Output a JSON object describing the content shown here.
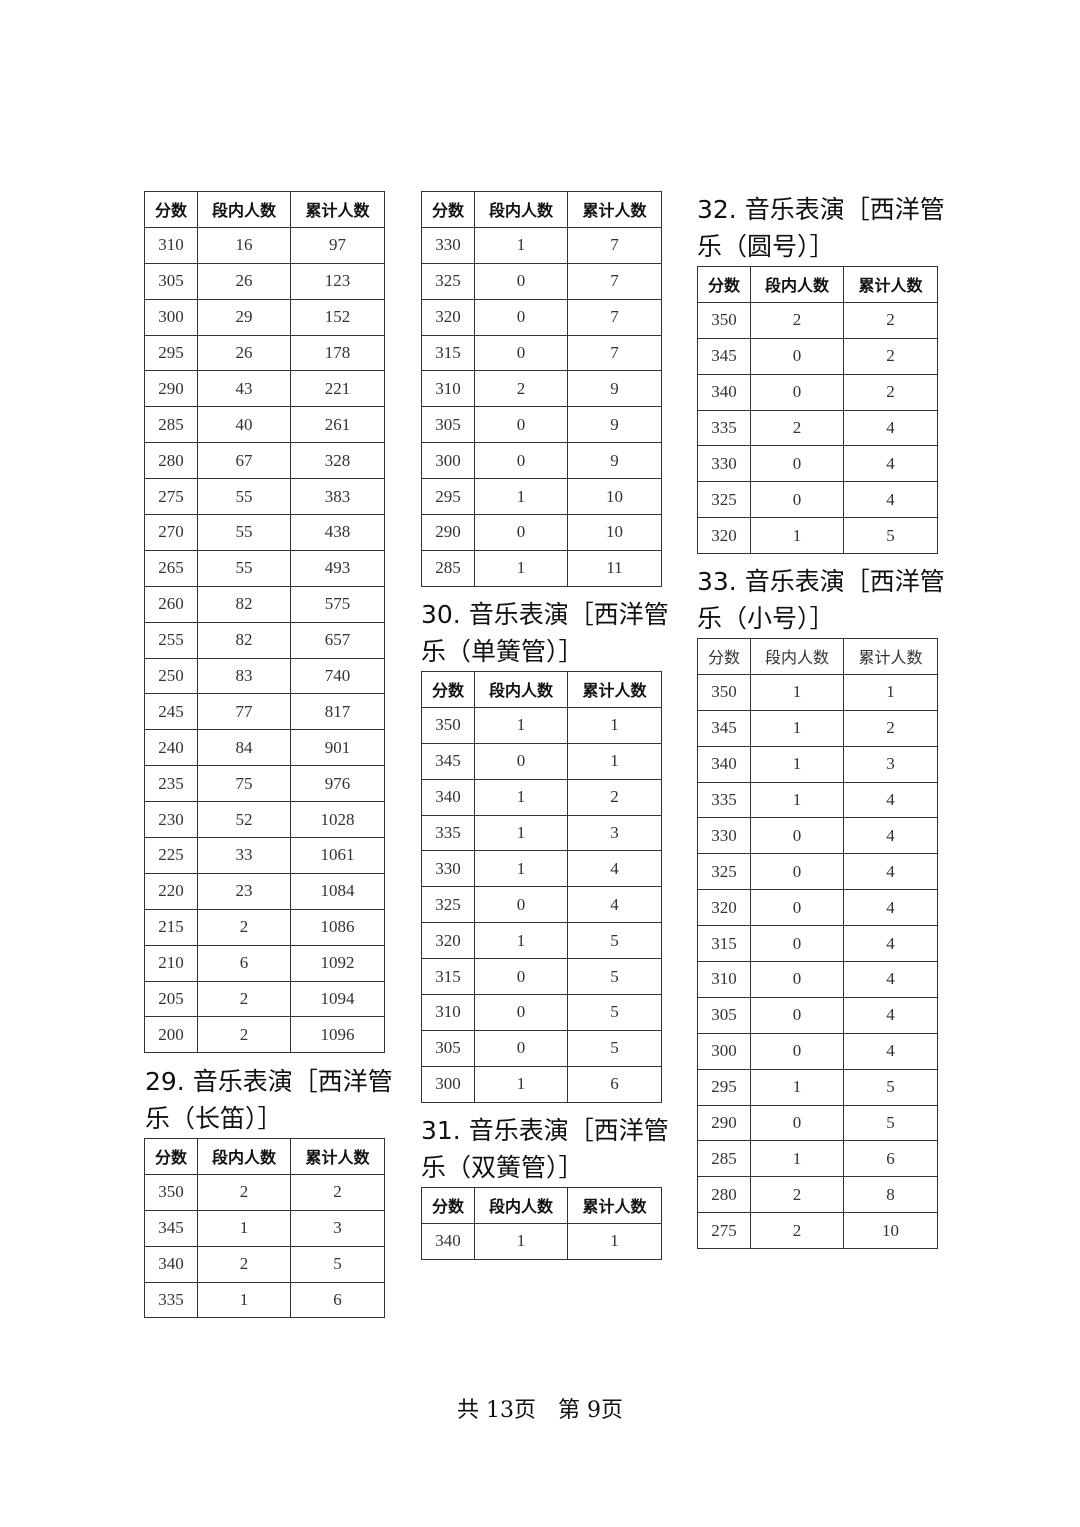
{
  "headers": [
    "分数",
    "段内人数",
    "累计人数"
  ],
  "tables": [
    {
      "id": "t28-cont",
      "title": "",
      "rows": [
        [
          "310",
          "16",
          "97"
        ],
        [
          "305",
          "26",
          "123"
        ],
        [
          "300",
          "29",
          "152"
        ],
        [
          "295",
          "26",
          "178"
        ],
        [
          "290",
          "43",
          "221"
        ],
        [
          "285",
          "40",
          "261"
        ],
        [
          "280",
          "67",
          "328"
        ],
        [
          "275",
          "55",
          "383"
        ],
        [
          "270",
          "55",
          "438"
        ],
        [
          "265",
          "55",
          "493"
        ],
        [
          "260",
          "82",
          "575"
        ],
        [
          "255",
          "82",
          "657"
        ],
        [
          "250",
          "83",
          "740"
        ],
        [
          "245",
          "77",
          "817"
        ],
        [
          "240",
          "84",
          "901"
        ],
        [
          "235",
          "75",
          "976"
        ],
        [
          "230",
          "52",
          "1028"
        ],
        [
          "225",
          "33",
          "1061"
        ],
        [
          "220",
          "23",
          "1084"
        ],
        [
          "215",
          "2",
          "1086"
        ],
        [
          "210",
          "6",
          "1092"
        ],
        [
          "205",
          "2",
          "1094"
        ],
        [
          "200",
          "2",
          "1096"
        ]
      ]
    },
    {
      "id": "t29",
      "title": "29. 音乐表演［西洋管乐（长笛）］",
      "rows": [
        [
          "350",
          "2",
          "2"
        ],
        [
          "345",
          "1",
          "3"
        ],
        [
          "340",
          "2",
          "5"
        ],
        [
          "335",
          "1",
          "6"
        ]
      ]
    },
    {
      "id": "t29-cont",
      "title": "",
      "rows": [
        [
          "330",
          "1",
          "7"
        ],
        [
          "325",
          "0",
          "7"
        ],
        [
          "320",
          "0",
          "7"
        ],
        [
          "315",
          "0",
          "7"
        ],
        [
          "310",
          "2",
          "9"
        ],
        [
          "305",
          "0",
          "9"
        ],
        [
          "300",
          "0",
          "9"
        ],
        [
          "295",
          "1",
          "10"
        ],
        [
          "290",
          "0",
          "10"
        ],
        [
          "285",
          "1",
          "11"
        ]
      ]
    },
    {
      "id": "t30",
      "title": "30. 音乐表演［西洋管乐（单簧管）］",
      "rows": [
        [
          "350",
          "1",
          "1"
        ],
        [
          "345",
          "0",
          "1"
        ],
        [
          "340",
          "1",
          "2"
        ],
        [
          "335",
          "1",
          "3"
        ],
        [
          "330",
          "1",
          "4"
        ],
        [
          "325",
          "0",
          "4"
        ],
        [
          "320",
          "1",
          "5"
        ],
        [
          "315",
          "0",
          "5"
        ],
        [
          "310",
          "0",
          "5"
        ],
        [
          "305",
          "0",
          "5"
        ],
        [
          "300",
          "1",
          "6"
        ]
      ]
    },
    {
      "id": "t31",
      "title": "31. 音乐表演［西洋管乐（双簧管）］",
      "rows": [
        [
          "340",
          "1",
          "1"
        ]
      ]
    },
    {
      "id": "t32",
      "title": "32. 音乐表演［西洋管乐（圆号）］",
      "rows": [
        [
          "350",
          "2",
          "2"
        ],
        [
          "345",
          "0",
          "2"
        ],
        [
          "340",
          "0",
          "2"
        ],
        [
          "335",
          "2",
          "4"
        ],
        [
          "330",
          "0",
          "4"
        ],
        [
          "325",
          "0",
          "4"
        ],
        [
          "320",
          "1",
          "5"
        ]
      ]
    },
    {
      "id": "t33",
      "title": "33. 音乐表演［西洋管乐（小号）］",
      "rows": [
        [
          "350",
          "1",
          "1"
        ],
        [
          "345",
          "1",
          "2"
        ],
        [
          "340",
          "1",
          "3"
        ],
        [
          "335",
          "1",
          "4"
        ],
        [
          "330",
          "0",
          "4"
        ],
        [
          "325",
          "0",
          "4"
        ],
        [
          "320",
          "0",
          "4"
        ],
        [
          "315",
          "0",
          "4"
        ],
        [
          "310",
          "0",
          "4"
        ],
        [
          "305",
          "0",
          "4"
        ],
        [
          "300",
          "0",
          "4"
        ],
        [
          "295",
          "1",
          "5"
        ],
        [
          "290",
          "0",
          "5"
        ],
        [
          "285",
          "1",
          "6"
        ],
        [
          "280",
          "2",
          "8"
        ],
        [
          "275",
          "2",
          "10"
        ]
      ]
    }
  ],
  "footer": "共 13页　第 9页"
}
